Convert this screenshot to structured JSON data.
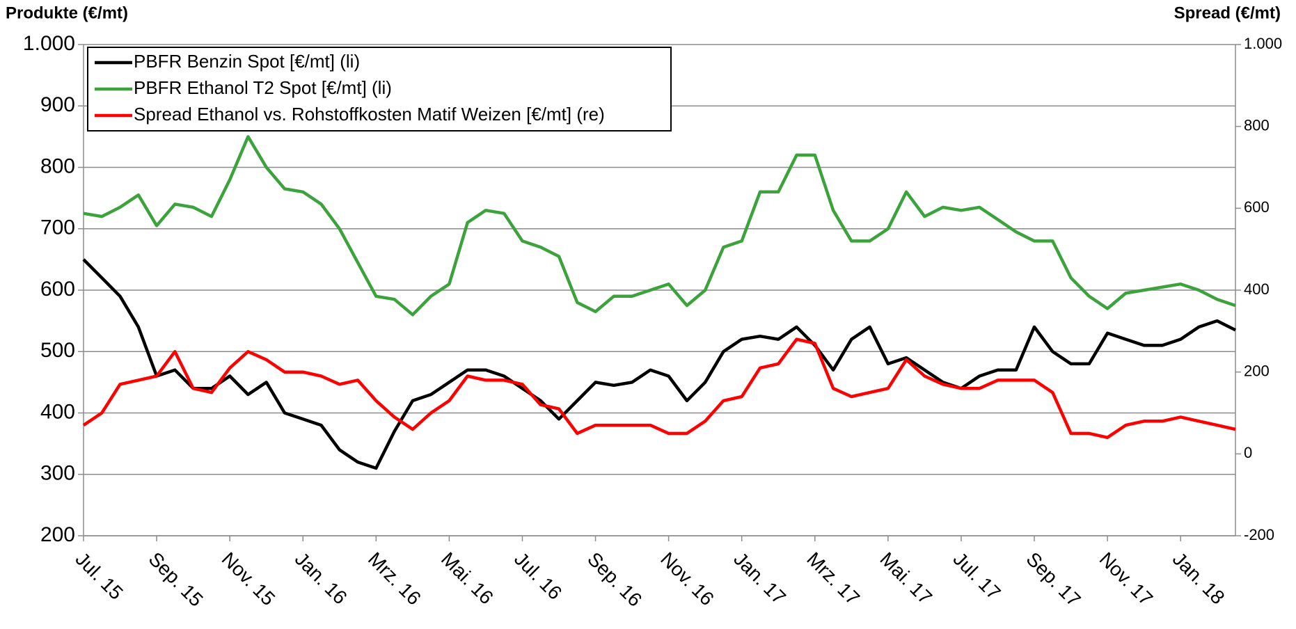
{
  "chart_data": {
    "type": "line",
    "ylabel": "Produkte (€/mt)",
    "y2label": "Spread (€/mt)",
    "categories": [
      "Jul. 15",
      null,
      null,
      null,
      "Sep. 15",
      null,
      null,
      null,
      "Nov. 15",
      null,
      null,
      null,
      "Jan. 16",
      null,
      null,
      null,
      "Mrz. 16",
      null,
      null,
      null,
      "Mai. 16",
      null,
      null,
      null,
      "Jul. 16",
      null,
      null,
      null,
      "Sep. 16",
      null,
      null,
      null,
      "Nov. 16",
      null,
      null,
      null,
      "Jan. 17",
      null,
      null,
      null,
      "Mrz. 17",
      null,
      null,
      null,
      "Mai. 17",
      null,
      null,
      null,
      "Jul. 17",
      null,
      null,
      null,
      "Sep. 17",
      null,
      null,
      null,
      "Nov. 17",
      null,
      null,
      null,
      "Jan. 18",
      null,
      null,
      null
    ],
    "series": [
      {
        "name": "PBFR Benzin Spot [€/mt] (li)",
        "color": "#000000",
        "axis": "y",
        "values": [
          650,
          620,
          590,
          540,
          460,
          470,
          440,
          440,
          460,
          430,
          450,
          400,
          390,
          380,
          340,
          320,
          310,
          370,
          420,
          430,
          450,
          470,
          470,
          460,
          440,
          420,
          390,
          420,
          450,
          445,
          450,
          470,
          460,
          420,
          450,
          500,
          520,
          525,
          520,
          540,
          510,
          470,
          520,
          540,
          480,
          490,
          470,
          450,
          440,
          460,
          470,
          470,
          540,
          500,
          480,
          480,
          530,
          520,
          510,
          510,
          520,
          540,
          550,
          535
        ]
      },
      {
        "name": "PBFR Ethanol T2 Spot [€/mt] (li)",
        "color": "#3ca23c",
        "axis": "y",
        "values": [
          725,
          720,
          735,
          755,
          705,
          740,
          735,
          720,
          780,
          850,
          800,
          765,
          760,
          740,
          700,
          645,
          590,
          585,
          560,
          590,
          610,
          710,
          730,
          725,
          680,
          670,
          655,
          580,
          565,
          590,
          590,
          600,
          610,
          575,
          600,
          670,
          680,
          760,
          760,
          820,
          820,
          730,
          680,
          680,
          700,
          760,
          720,
          735,
          730,
          735,
          715,
          695,
          680,
          680,
          620,
          590,
          570,
          595,
          600,
          605,
          610,
          600,
          585,
          575
        ]
      },
      {
        "name": "Spread Ethanol vs. Rohstoffkosten Matif Weizen [€/mt] (re)",
        "color": "#ff0000",
        "axis": "y2",
        "values": [
          70,
          100,
          170,
          180,
          190,
          250,
          160,
          150,
          210,
          250,
          230,
          200,
          200,
          190,
          170,
          180,
          130,
          90,
          60,
          100,
          130,
          190,
          180,
          180,
          170,
          120,
          110,
          50,
          70,
          70,
          70,
          70,
          50,
          50,
          80,
          130,
          140,
          210,
          220,
          280,
          270,
          160,
          140,
          150,
          160,
          230,
          190,
          170,
          160,
          160,
          180,
          180,
          180,
          150,
          50,
          50,
          40,
          70,
          80,
          80,
          90,
          80,
          70,
          60
        ]
      }
    ],
    "ylim": [
      200,
      1000
    ],
    "yticks": [
      200,
      300,
      400,
      500,
      600,
      700,
      800,
      900,
      {
        "value": 1000,
        "label": "1.000"
      }
    ],
    "y2lim": [
      -200,
      1000
    ],
    "y2ticks": [
      -200,
      0,
      200,
      400,
      600,
      800,
      {
        "value": 1000,
        "label": "1.000"
      }
    ],
    "grid": true,
    "legend": "upper left"
  }
}
